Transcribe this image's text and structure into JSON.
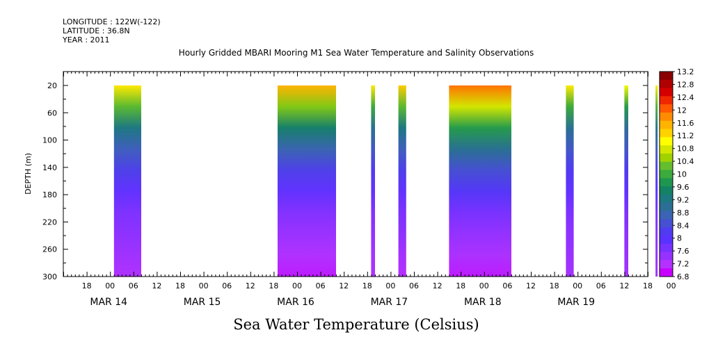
{
  "header": {
    "longitude": "LONGITUDE : 122W(-122)",
    "latitude": "LATITUDE : 36.8N",
    "year": "YEAR : 2011"
  },
  "chart_data": {
    "type": "heatmap",
    "title": "Hourly Gridded MBARI Mooring M1 Sea Water Temperature and Salinity Observations",
    "bottom_title": "Sea Water Temperature (Celsius)",
    "ylabel": "DEPTH (m)",
    "ylim": [
      300,
      20
    ],
    "y_ticks": [
      "20",
      "60",
      "100",
      "140",
      "180",
      "220",
      "260",
      "300"
    ],
    "x_unit": "hours since 2011-03-14 00:00",
    "xlim": [
      -12,
      138
    ],
    "x_hour_ticks": [
      "18",
      "00",
      "06",
      "12",
      "18",
      "00",
      "06",
      "12",
      "18",
      "00",
      "06",
      "12",
      "18",
      "00",
      "06",
      "12",
      "18",
      "00",
      "06",
      "12",
      "18",
      "00",
      "06",
      "12",
      "18",
      "00"
    ],
    "x_day_labels": [
      "MAR 14",
      "MAR 15",
      "MAR 16",
      "MAR 17",
      "MAR 18",
      "MAR 19"
    ],
    "colorbar_labels": [
      "13.2",
      "12.8",
      "12.4",
      "12",
      "11.6",
      "11.2",
      "10.8",
      "10.4",
      "10",
      "9.6",
      "9.2",
      "8.8",
      "8.4",
      "8",
      "7.6",
      "7.2",
      "6.8"
    ],
    "colorbar_colors": [
      "#8b0000",
      "#b00000",
      "#d40000",
      "#f02800",
      "#ff5a00",
      "#ff8c00",
      "#ffb400",
      "#ffd200",
      "#ffff00",
      "#d2e600",
      "#a0d200",
      "#64be2d",
      "#3caa3c",
      "#1e9650",
      "#148264",
      "#1e7882",
      "#2d6e96",
      "#3c64b4",
      "#4650d2",
      "#503cf0",
      "#5a32ff",
      "#7832ff",
      "#9632ff",
      "#b432ff",
      "#c800ff"
    ],
    "depth_profile_meta": "temperature in Celsius at depths 20..300 m",
    "blocks": [
      {
        "x_start": 1,
        "x_end": 8,
        "profile": [
          11.2,
          10.2,
          9.2,
          8.6,
          8.2,
          7.8,
          7.55,
          7.4,
          7.25,
          7.1
        ]
      },
      {
        "x_start": 43,
        "x_end": 58,
        "profile": [
          11.6,
          10.4,
          9.4,
          8.7,
          8.2,
          7.8,
          7.5,
          7.3,
          7.1,
          6.95
        ]
      },
      {
        "x_start": 67,
        "x_end": 68,
        "profile": [
          11.2,
          10.0,
          9.0,
          8.5,
          8.1,
          7.8,
          7.5,
          7.35,
          7.2,
          7.1
        ]
      },
      {
        "x_start": 74,
        "x_end": 76,
        "profile": [
          11.4,
          10.2,
          9.2,
          8.6,
          8.2,
          7.8,
          7.55,
          7.4,
          7.2,
          7.05
        ]
      },
      {
        "x_start": 87,
        "x_end": 103,
        "profile": [
          12.0,
          10.8,
          9.8,
          9.0,
          8.4,
          8.0,
          7.6,
          7.35,
          7.15,
          6.95
        ]
      },
      {
        "x_start": 117,
        "x_end": 119,
        "profile": [
          11.2,
          10.0,
          9.0,
          8.5,
          8.1,
          7.8,
          7.55,
          7.4,
          7.3,
          7.2
        ]
      },
      {
        "x_start": 132,
        "x_end": 133,
        "profile": [
          11.0,
          9.8,
          8.9,
          8.5,
          8.1,
          7.8,
          7.55,
          7.4,
          7.3,
          7.2
        ]
      },
      {
        "x_start": 140,
        "x_end": 144,
        "profile": [
          11.2,
          10.1,
          9.1,
          8.6,
          8.2,
          7.85,
          7.6,
          7.45,
          7.35,
          7.25
        ]
      }
    ]
  }
}
